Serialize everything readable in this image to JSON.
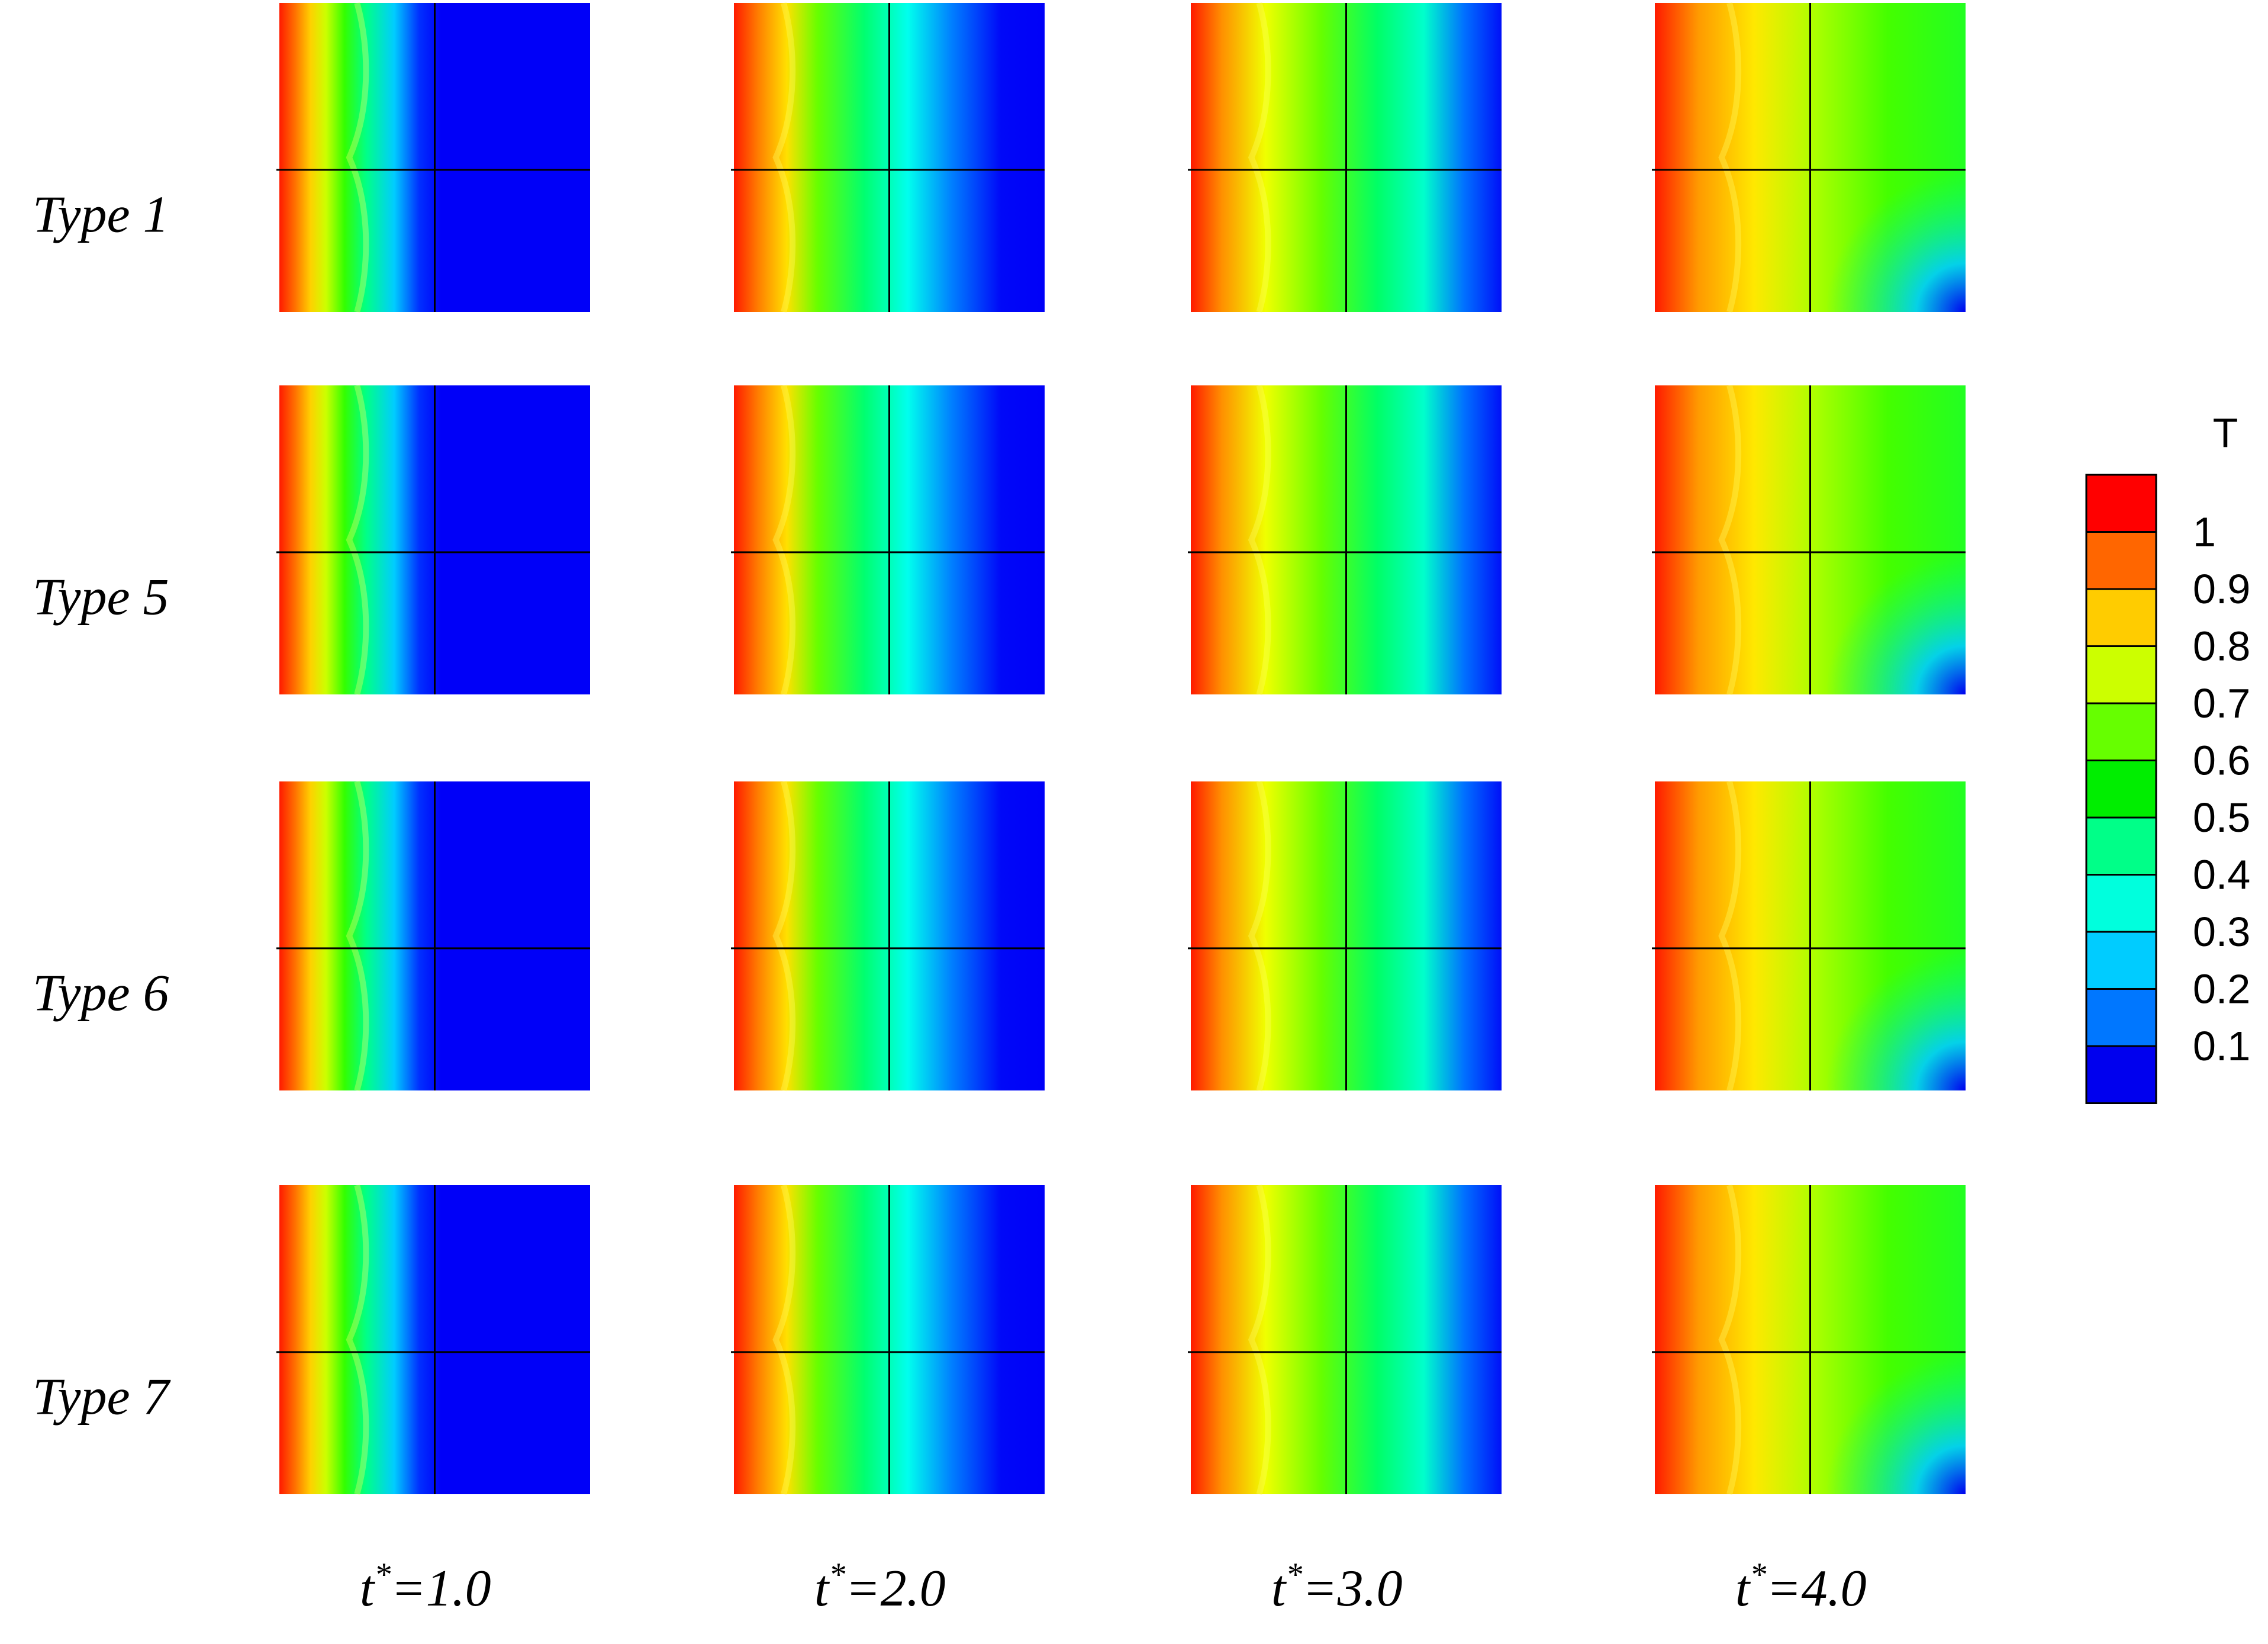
{
  "chart_data": {
    "type": "heatmap",
    "rows": [
      {
        "label": "Type 1"
      },
      {
        "label": "Type 5"
      },
      {
        "label": "Type 6"
      },
      {
        "label": "Type 7"
      }
    ],
    "columns": [
      {
        "label": "t*=1.0",
        "base": "t",
        "sup": "*",
        "rest": "=1.0"
      },
      {
        "label": "t*=2.0",
        "base": "t",
        "sup": "*",
        "rest": "=2.0"
      },
      {
        "label": "t*=3.0",
        "base": "t",
        "sup": "*",
        "rest": "=3.0"
      },
      {
        "label": "t*=4.0",
        "base": "t",
        "sup": "*",
        "rest": "=4.0"
      }
    ],
    "colorbar": {
      "title": "T",
      "ticks": [
        "1",
        "0.9",
        "0.8",
        "0.7",
        "0.6",
        "0.5",
        "0.4",
        "0.3",
        "0.2",
        "0.1"
      ],
      "levels": [
        "#ff0000",
        "#ff6600",
        "#ffcc00",
        "#ccff00",
        "#66ff00",
        "#00ee00",
        "#00ff88",
        "#00ffdd",
        "#00ccff",
        "#0077ff",
        "#0000ee"
      ]
    }
  }
}
